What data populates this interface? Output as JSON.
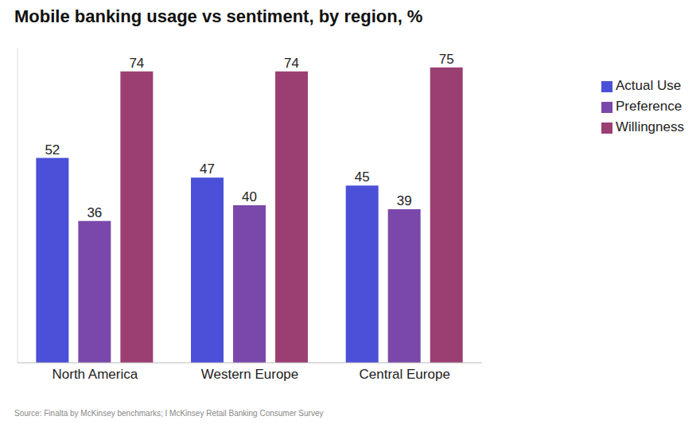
{
  "chart_data": {
    "type": "bar",
    "title": "Mobile banking usage vs sentiment, by region, %",
    "source": "Source: Finalta by McKinsey benchmarks; I McKinsey Retail Banking Consumer Survey",
    "categories": [
      "North America",
      "Western Europe",
      "Central Europe"
    ],
    "series": [
      {
        "name": "Actual Use",
        "color": "#4b50d8",
        "values": [
          52,
          47,
          45
        ]
      },
      {
        "name": "Preference",
        "color": "#7a48aa",
        "values": [
          36,
          40,
          39
        ]
      },
      {
        "name": "Willingness",
        "color": "#9b3f72",
        "values": [
          74,
          74,
          75
        ]
      }
    ],
    "ylim": [
      0,
      80
    ],
    "grid": false,
    "legend": "top-right",
    "data_labels": true,
    "tick_labels": "x"
  }
}
